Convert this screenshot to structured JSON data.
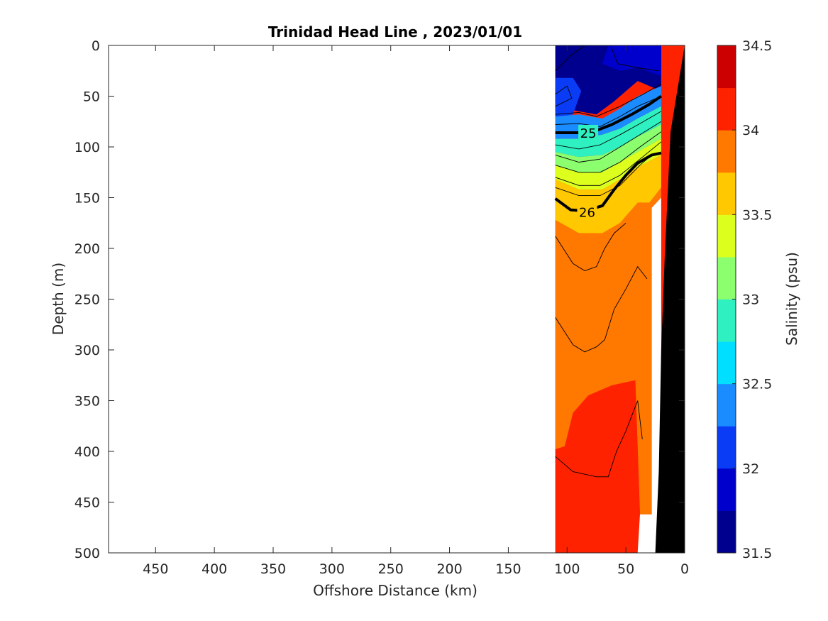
{
  "chart_data": {
    "type": "heatmap",
    "title": "Trinidad Head Line , 2023/01/01",
    "xlabel": "Offshore Distance (km)",
    "ylabel": "Depth (m)",
    "xlim": [
      490,
      0
    ],
    "ylim": [
      500,
      0
    ],
    "x_reversed": true,
    "y_reversed": true,
    "xticks": [
      450,
      400,
      350,
      300,
      250,
      200,
      150,
      100,
      50,
      0
    ],
    "yticks": [
      0,
      50,
      100,
      150,
      200,
      250,
      300,
      350,
      400,
      450,
      500
    ],
    "colorbar": {
      "label": "Salinity (psu)",
      "range": [
        31.5,
        34.5
      ],
      "step": 0.25,
      "tick_values": [
        31.5,
        32,
        32.5,
        33,
        33.5,
        34,
        34.5
      ],
      "tick_labels": [
        "31.5",
        "32",
        "32.5",
        "33",
        "33.5",
        "34",
        "34.5"
      ],
      "colors": [
        "#00008f",
        "#0000cc",
        "#0a3cf5",
        "#1a8cff",
        "#00dfff",
        "#2ff0c0",
        "#8cff6e",
        "#dcff1e",
        "#ffc800",
        "#ff7800",
        "#ff2200",
        "#cc0000"
      ]
    },
    "data_extent_km": [
      0,
      110
    ],
    "bottom_profile": [
      {
        "x": 0,
        "depth": 0
      },
      {
        "x": 12,
        "depth": 85
      },
      {
        "x": 17,
        "depth": 210
      },
      {
        "x": 20,
        "depth": 300
      },
      {
        "x": 22,
        "depth": 420
      },
      {
        "x": 25,
        "depth": 500
      }
    ],
    "salinity_bands": [
      {
        "low": 31.5,
        "high": 32.25,
        "polygon": [
          [
            110,
            0
          ],
          [
            20,
            0
          ],
          [
            20,
            45
          ],
          [
            40,
            35
          ],
          [
            60,
            55
          ],
          [
            75,
            68
          ],
          [
            90,
            65
          ],
          [
            102,
            62
          ],
          [
            110,
            55
          ]
        ]
      },
      {
        "low": 31.75,
        "high": 32.0,
        "polygon": [
          [
            65,
            0
          ],
          [
            20,
            0
          ],
          [
            20,
            30
          ],
          [
            40,
            22
          ],
          [
            55,
            25
          ],
          [
            70,
            18
          ]
        ]
      },
      {
        "low": 31.75,
        "high": 32.0,
        "polygon": [
          [
            110,
            42
          ],
          [
            98,
            40
          ],
          [
            90,
            50
          ],
          [
            98,
            62
          ],
          [
            110,
            65
          ]
        ]
      },
      {
        "low": 32.0,
        "high": 32.25,
        "polygon": [
          [
            110,
            32
          ],
          [
            95,
            32
          ],
          [
            88,
            45
          ],
          [
            95,
            68
          ],
          [
            110,
            72
          ]
        ]
      },
      {
        "low": 32.25,
        "high": 32.75,
        "polygon": [
          [
            110,
            70
          ],
          [
            90,
            68
          ],
          [
            70,
            72
          ],
          [
            55,
            62
          ],
          [
            40,
            50
          ],
          [
            20,
            40
          ],
          [
            20,
            60
          ],
          [
            40,
            72
          ],
          [
            55,
            82
          ],
          [
            70,
            88
          ],
          [
            90,
            92
          ],
          [
            110,
            92
          ]
        ]
      },
      {
        "low": 32.75,
        "high": 33.0,
        "polygon": [
          [
            110,
            92
          ],
          [
            90,
            92
          ],
          [
            70,
            88
          ],
          [
            55,
            82
          ],
          [
            40,
            72
          ],
          [
            20,
            60
          ],
          [
            20,
            78
          ],
          [
            40,
            90
          ],
          [
            55,
            100
          ],
          [
            70,
            108
          ],
          [
            90,
            110
          ],
          [
            110,
            105
          ]
        ]
      },
      {
        "low": 33.0,
        "high": 33.25,
        "polygon": [
          [
            110,
            105
          ],
          [
            90,
            110
          ],
          [
            70,
            108
          ],
          [
            55,
            100
          ],
          [
            40,
            90
          ],
          [
            20,
            78
          ],
          [
            20,
            92
          ],
          [
            40,
            105
          ],
          [
            55,
            115
          ],
          [
            70,
            125
          ],
          [
            90,
            125
          ],
          [
            110,
            118
          ]
        ]
      },
      {
        "low": 33.25,
        "high": 33.5,
        "polygon": [
          [
            110,
            118
          ],
          [
            90,
            125
          ],
          [
            70,
            125
          ],
          [
            55,
            115
          ],
          [
            40,
            105
          ],
          [
            20,
            92
          ],
          [
            20,
            108
          ],
          [
            40,
            120
          ],
          [
            55,
            132
          ],
          [
            70,
            142
          ],
          [
            90,
            142
          ],
          [
            110,
            132
          ]
        ]
      },
      {
        "low": 33.5,
        "high": 33.75,
        "polygon": [
          [
            110,
            132
          ],
          [
            90,
            142
          ],
          [
            70,
            142
          ],
          [
            55,
            132
          ],
          [
            40,
            120
          ],
          [
            20,
            108
          ],
          [
            20,
            140
          ],
          [
            30,
            155
          ],
          [
            40,
            155
          ],
          [
            55,
            175
          ],
          [
            70,
            185
          ],
          [
            90,
            185
          ],
          [
            110,
            172
          ]
        ]
      },
      {
        "low": 33.75,
        "high": 34.0,
        "polygon": [
          [
            110,
            172
          ],
          [
            90,
            185
          ],
          [
            70,
            185
          ],
          [
            55,
            175
          ],
          [
            40,
            155
          ],
          [
            30,
            155
          ],
          [
            20,
            140
          ],
          [
            20,
            150
          ],
          [
            28,
            160
          ],
          [
            28,
            462
          ],
          [
            38,
            462
          ],
          [
            42,
            330
          ],
          [
            62,
            335
          ],
          [
            82,
            345
          ],
          [
            95,
            362
          ],
          [
            102,
            395
          ],
          [
            110,
            398
          ]
        ]
      },
      {
        "low": 34.0,
        "high": 34.25,
        "polygon": [
          [
            110,
            398
          ],
          [
            102,
            395
          ],
          [
            95,
            362
          ],
          [
            82,
            345
          ],
          [
            62,
            335
          ],
          [
            42,
            330
          ],
          [
            38,
            462
          ],
          [
            40,
            500
          ],
          [
            110,
            500
          ]
        ]
      }
    ],
    "thin_contours": [
      [
        [
          110,
          25
        ],
        [
          97,
          10
        ],
        [
          85,
          0
        ]
      ],
      [
        [
          63,
          0
        ],
        [
          57,
          18
        ],
        [
          40,
          22
        ],
        [
          22,
          25
        ]
      ],
      [
        [
          110,
          48
        ],
        [
          100,
          40
        ],
        [
          96,
          52
        ],
        [
          110,
          60
        ]
      ],
      [
        [
          110,
          68
        ],
        [
          90,
          66
        ],
        [
          75,
          70
        ],
        [
          55,
          60
        ],
        [
          35,
          48
        ],
        [
          20,
          38
        ]
      ],
      [
        [
          110,
          78
        ],
        [
          90,
          77
        ],
        [
          72,
          80
        ],
        [
          55,
          70
        ],
        [
          40,
          60
        ],
        [
          20,
          50
        ]
      ],
      [
        [
          110,
          98
        ],
        [
          90,
          102
        ],
        [
          72,
          98
        ],
        [
          55,
          88
        ],
        [
          38,
          77
        ],
        [
          20,
          65
        ]
      ],
      [
        [
          110,
          108
        ],
        [
          90,
          115
        ],
        [
          72,
          112
        ],
        [
          55,
          100
        ],
        [
          38,
          88
        ],
        [
          20,
          75
        ]
      ],
      [
        [
          110,
          118
        ],
        [
          90,
          125
        ],
        [
          72,
          125
        ],
        [
          55,
          115
        ],
        [
          38,
          100
        ],
        [
          20,
          85
        ]
      ],
      [
        [
          110,
          130
        ],
        [
          90,
          138
        ],
        [
          72,
          138
        ],
        [
          55,
          128
        ],
        [
          38,
          112
        ],
        [
          20,
          95
        ]
      ],
      [
        [
          110,
          140
        ],
        [
          90,
          148
        ],
        [
          72,
          148
        ],
        [
          55,
          138
        ],
        [
          38,
          118
        ],
        [
          28,
          108
        ]
      ],
      [
        [
          110,
          188
        ],
        [
          95,
          215
        ],
        [
          85,
          222
        ],
        [
          75,
          218
        ],
        [
          68,
          200
        ],
        [
          60,
          185
        ],
        [
          50,
          175
        ]
      ],
      [
        [
          110,
          268
        ],
        [
          95,
          295
        ],
        [
          85,
          302
        ],
        [
          75,
          297
        ],
        [
          68,
          290
        ],
        [
          60,
          260
        ],
        [
          50,
          240
        ],
        [
          40,
          218
        ],
        [
          32,
          230
        ]
      ],
      [
        [
          110,
          405
        ],
        [
          95,
          420
        ],
        [
          75,
          425
        ],
        [
          65,
          425
        ],
        [
          58,
          400
        ],
        [
          50,
          380
        ],
        [
          40,
          350
        ],
        [
          36,
          388
        ]
      ]
    ],
    "thick_contours": [
      {
        "label": "25",
        "points": [
          [
            110,
            86
          ],
          [
            95,
            86
          ],
          [
            80,
            86
          ],
          [
            62,
            78
          ],
          [
            45,
            68
          ],
          [
            30,
            58
          ],
          [
            20,
            50
          ]
        ],
        "label_at": [
          82,
          86
        ]
      },
      {
        "label": "26",
        "points": [
          [
            110,
            151
          ],
          [
            97,
            162
          ],
          [
            85,
            163
          ],
          [
            70,
            158
          ],
          [
            60,
            142
          ],
          [
            50,
            128
          ],
          [
            40,
            116
          ],
          [
            28,
            108
          ],
          [
            20,
            106
          ]
        ],
        "label_at": [
          83,
          164
        ]
      }
    ]
  }
}
